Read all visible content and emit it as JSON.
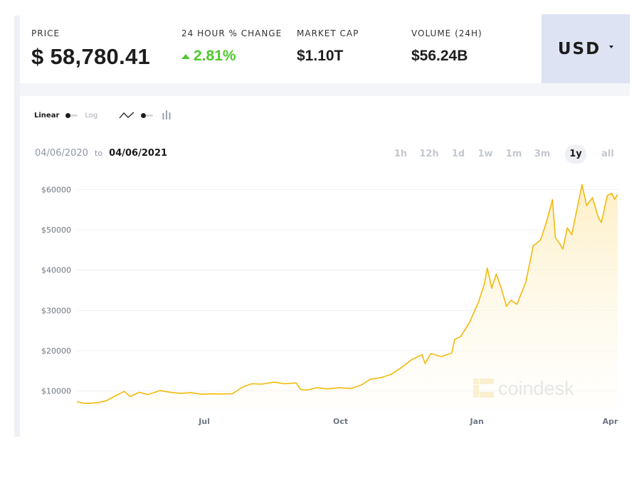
{
  "stats": {
    "price": {
      "label": "PRICE",
      "value": "$ 58,780.41"
    },
    "change": {
      "label": "24 HOUR % CHANGE",
      "value": "2.81%"
    },
    "market_cap": {
      "label": "MARKET CAP",
      "value": "$1.10T"
    },
    "volume": {
      "label": "VOLUME (24H)",
      "value": "$56.24B"
    }
  },
  "currency": {
    "label": "USD"
  },
  "toolbar": {
    "linear_label": "Linear",
    "log_label": "Log"
  },
  "date_range": {
    "start": "04/06/2020",
    "to": "to",
    "end": "04/06/2021"
  },
  "ranges": [
    {
      "label": "1h",
      "active": false
    },
    {
      "label": "12h",
      "active": false
    },
    {
      "label": "1d",
      "active": false
    },
    {
      "label": "1w",
      "active": false
    },
    {
      "label": "1m",
      "active": false
    },
    {
      "label": "3m",
      "active": false
    },
    {
      "label": "1y",
      "active": true
    },
    {
      "label": "all",
      "active": false
    }
  ],
  "colors": {
    "line": "#f2b90b",
    "fill_top": "#fdeec2",
    "fill_bottom": "#fffdf5",
    "up": "#4dc92c",
    "accent_bg": "#dde3f3"
  },
  "watermark": "coindesk",
  "chart_data": {
    "type": "area",
    "ylim": [
      5000,
      62000
    ],
    "yticks": [
      10000,
      20000,
      30000,
      40000,
      50000,
      60000
    ],
    "ytick_labels": [
      "$10000",
      "$20000",
      "$30000",
      "$40000",
      "$50000",
      "$60000"
    ],
    "xticks": [
      {
        "date": "2020-07-01",
        "label": "Jul"
      },
      {
        "date": "2020-10-01",
        "label": "Oct"
      },
      {
        "date": "2021-01-01",
        "label": "Jan"
      },
      {
        "date": "2021-04-01",
        "label": "Apr"
      }
    ],
    "xlim": [
      "2020-04-06",
      "2021-04-06"
    ],
    "grid": true,
    "series": [
      {
        "points": [
          [
            "2020-04-06",
            7300
          ],
          [
            "2020-04-12",
            6900
          ],
          [
            "2020-04-20",
            7100
          ],
          [
            "2020-04-26",
            7600
          ],
          [
            "2020-05-02",
            8800
          ],
          [
            "2020-05-08",
            9900
          ],
          [
            "2020-05-12",
            8600
          ],
          [
            "2020-05-18",
            9700
          ],
          [
            "2020-05-24",
            9100
          ],
          [
            "2020-06-01",
            10100
          ],
          [
            "2020-06-08",
            9700
          ],
          [
            "2020-06-15",
            9400
          ],
          [
            "2020-06-22",
            9600
          ],
          [
            "2020-06-29",
            9200
          ],
          [
            "2020-07-06",
            9300
          ],
          [
            "2020-07-13",
            9250
          ],
          [
            "2020-07-20",
            9350
          ],
          [
            "2020-07-27",
            11000
          ],
          [
            "2020-08-02",
            11800
          ],
          [
            "2020-08-09",
            11700
          ],
          [
            "2020-08-17",
            12200
          ],
          [
            "2020-08-24",
            11800
          ],
          [
            "2020-09-01",
            12000
          ],
          [
            "2020-09-04",
            10400
          ],
          [
            "2020-09-08",
            10200
          ],
          [
            "2020-09-15",
            10800
          ],
          [
            "2020-09-22",
            10500
          ],
          [
            "2020-09-30",
            10800
          ],
          [
            "2020-10-08",
            10600
          ],
          [
            "2020-10-15",
            11500
          ],
          [
            "2020-10-21",
            12900
          ],
          [
            "2020-10-28",
            13300
          ],
          [
            "2020-11-04",
            14100
          ],
          [
            "2020-11-11",
            15800
          ],
          [
            "2020-11-18",
            17800
          ],
          [
            "2020-11-25",
            19000
          ],
          [
            "2020-11-27",
            16800
          ],
          [
            "2020-12-01",
            19300
          ],
          [
            "2020-12-08",
            18500
          ],
          [
            "2020-12-15",
            19400
          ],
          [
            "2020-12-17",
            22800
          ],
          [
            "2020-12-21",
            23500
          ],
          [
            "2020-12-27",
            27000
          ],
          [
            "2021-01-02",
            32000
          ],
          [
            "2021-01-06",
            36500
          ],
          [
            "2021-01-08",
            40500
          ],
          [
            "2021-01-11",
            35500
          ],
          [
            "2021-01-14",
            39000
          ],
          [
            "2021-01-17",
            36000
          ],
          [
            "2021-01-21",
            31000
          ],
          [
            "2021-01-24",
            32500
          ],
          [
            "2021-01-28",
            31500
          ],
          [
            "2021-02-03",
            37000
          ],
          [
            "2021-02-08",
            46000
          ],
          [
            "2021-02-13",
            47500
          ],
          [
            "2021-02-17",
            52000
          ],
          [
            "2021-02-21",
            57500
          ],
          [
            "2021-02-23",
            48000
          ],
          [
            "2021-02-26",
            46500
          ],
          [
            "2021-02-28",
            45200
          ],
          [
            "2021-03-03",
            50500
          ],
          [
            "2021-03-06",
            48800
          ],
          [
            "2021-03-10",
            56000
          ],
          [
            "2021-03-13",
            61200
          ],
          [
            "2021-03-16",
            56000
          ],
          [
            "2021-03-20",
            58000
          ],
          [
            "2021-03-24",
            53000
          ],
          [
            "2021-03-26",
            51800
          ],
          [
            "2021-03-30",
            58500
          ],
          [
            "2021-04-02",
            59000
          ],
          [
            "2021-04-04",
            57600
          ],
          [
            "2021-04-06",
            58780
          ]
        ]
      }
    ]
  }
}
